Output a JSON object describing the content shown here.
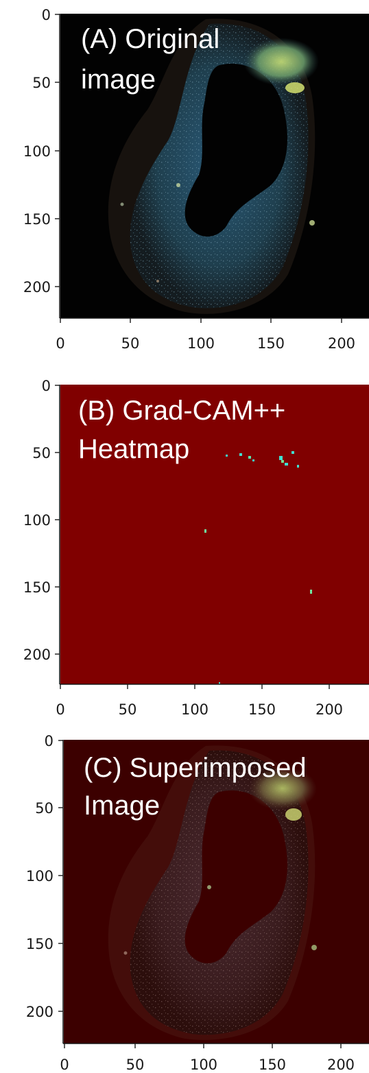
{
  "panels": [
    {
      "id": "A",
      "label_line1": "(A) Original",
      "label_line2": "image",
      "y_ticks": [
        "0",
        "50",
        "100",
        "150",
        "200"
      ],
      "x_ticks": [
        "0",
        "50",
        "100",
        "150",
        "200"
      ]
    },
    {
      "id": "B",
      "label_line1": "(B) Grad-CAM++",
      "label_line2": "Heatmap",
      "y_ticks": [
        "0",
        "50",
        "100",
        "150",
        "200"
      ],
      "x_ticks": [
        "0",
        "50",
        "100",
        "150",
        "200"
      ]
    },
    {
      "id": "C",
      "label_line1": "(C) Superimposed",
      "label_line2": "Image",
      "y_ticks": [
        "0",
        "50",
        "100",
        "150",
        "200"
      ],
      "x_ticks": [
        "0",
        "50",
        "100",
        "150",
        "200"
      ]
    }
  ],
  "colors": {
    "original_background": "#020202",
    "heatmap_background": "#800000",
    "superimposed_background": "#3c0000",
    "hotspot": "#40e0d0"
  }
}
